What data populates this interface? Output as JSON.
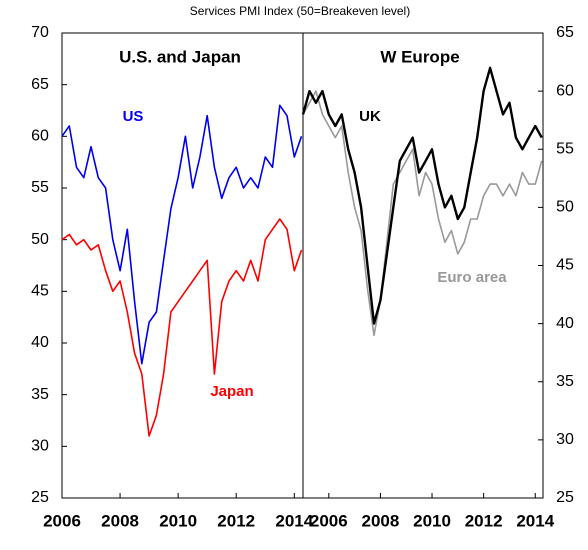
{
  "title": "Services PMI Index (50=Breakeven level)",
  "chart_data": [
    {
      "type": "line",
      "title": "U.S. and Japan",
      "yaxis_side": "left",
      "xlim": [
        2006,
        2014.3
      ],
      "xticks": [
        2006,
        2008,
        2010,
        2012,
        2014
      ],
      "ylim": [
        25,
        70
      ],
      "yticks": [
        25,
        30,
        35,
        40,
        45,
        50,
        55,
        60,
        65,
        70
      ],
      "x": [
        2006,
        2006.25,
        2006.5,
        2006.75,
        2007,
        2007.25,
        2007.5,
        2007.75,
        2008,
        2008.25,
        2008.5,
        2008.75,
        2009,
        2009.25,
        2009.5,
        2009.75,
        2010,
        2010.25,
        2010.5,
        2010.75,
        2011,
        2011.25,
        2011.5,
        2011.75,
        2012,
        2012.25,
        2012.5,
        2012.75,
        2013,
        2013.25,
        2013.5,
        2013.75,
        2014,
        2014.25
      ],
      "series": [
        {
          "name": "US",
          "color": "#0000ee",
          "values": [
            60,
            61,
            57,
            56,
            59,
            56,
            55,
            50,
            47,
            51,
            44,
            38,
            42,
            43,
            48,
            53,
            56,
            60,
            55,
            58,
            62,
            57,
            54,
            56,
            57,
            55,
            56,
            55,
            58,
            57,
            63,
            62,
            58,
            60
          ]
        },
        {
          "name": "Japan",
          "color": "#ff0000",
          "values": [
            50,
            50.5,
            49.5,
            50,
            49,
            49.5,
            47,
            45,
            46,
            43,
            39,
            37,
            31,
            33,
            37,
            43,
            44,
            45,
            46,
            47,
            48,
            37,
            44,
            46,
            47,
            46,
            48,
            46,
            50,
            51,
            52,
            51,
            47,
            49
          ]
        }
      ]
    },
    {
      "type": "line",
      "title": "W Europe",
      "yaxis_side": "right",
      "xlim": [
        2005,
        2014.3
      ],
      "xticks": [
        2006,
        2008,
        2010,
        2012,
        2014
      ],
      "ylim": [
        25,
        65
      ],
      "yticks": [
        25,
        30,
        35,
        40,
        45,
        50,
        55,
        60,
        65
      ],
      "x": [
        2005,
        2005.25,
        2005.5,
        2005.75,
        2006,
        2006.25,
        2006.5,
        2006.75,
        2007,
        2007.25,
        2007.5,
        2007.75,
        2008,
        2008.25,
        2008.5,
        2008.75,
        2009,
        2009.25,
        2009.5,
        2009.75,
        2010,
        2010.25,
        2010.5,
        2010.75,
        2011,
        2011.25,
        2011.5,
        2011.75,
        2012,
        2012.25,
        2012.5,
        2012.75,
        2013,
        2013.25,
        2013.5,
        2013.75,
        2014,
        2014.25
      ],
      "series": [
        {
          "name": "Euro area",
          "color": "#999999",
          "values": [
            58,
            59,
            60,
            58,
            57,
            56,
            57,
            53,
            50,
            48,
            43,
            39,
            42,
            47,
            52,
            53,
            54,
            55,
            51,
            53,
            52,
            49,
            47,
            48,
            46,
            47,
            49,
            49,
            51,
            52,
            52,
            51,
            52,
            51,
            53,
            52,
            52,
            54
          ]
        },
        {
          "name": "UK",
          "color": "#000000",
          "values": [
            58,
            60,
            59,
            60,
            58,
            57,
            58,
            55,
            53,
            50,
            45,
            40,
            42,
            46,
            50,
            54,
            55,
            56,
            53,
            54,
            55,
            52,
            50,
            51,
            49,
            50,
            53,
            56,
            60,
            62,
            60,
            58,
            59,
            56,
            55,
            56,
            57,
            56
          ]
        }
      ]
    }
  ]
}
